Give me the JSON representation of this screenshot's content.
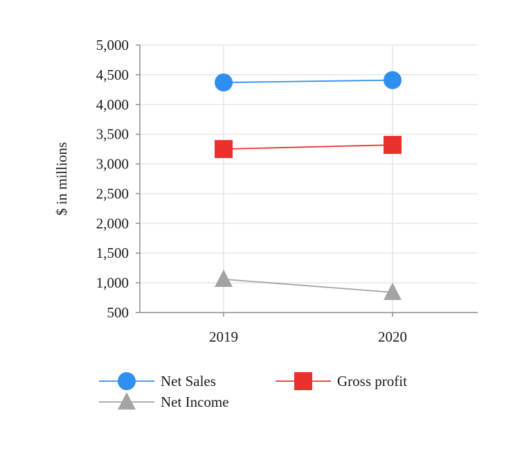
{
  "chart_data": {
    "type": "line",
    "title": "",
    "xlabel": "",
    "ylabel": "$ in millions",
    "categories": [
      "2019",
      "2020"
    ],
    "ylim": [
      500,
      5000
    ],
    "yticks": [
      500,
      1000,
      1500,
      2000,
      2500,
      3000,
      3500,
      4000,
      4500,
      5000
    ],
    "ytick_labels": [
      "500",
      "1,000",
      "1,500",
      "2,000",
      "2,500",
      "3,000",
      "3,500",
      "4,000",
      "4,500",
      "5,000"
    ],
    "grid": true,
    "legend_position": "bottom",
    "series": [
      {
        "name": "Net Sales",
        "values": [
          4370,
          4410
        ],
        "color": "#2f8ff0",
        "marker": "circle"
      },
      {
        "name": "Gross profit",
        "values": [
          3250,
          3320
        ],
        "color": "#e8312c",
        "marker": "square"
      },
      {
        "name": "Net Income",
        "values": [
          1060,
          840
        ],
        "color": "#a3a3a3",
        "marker": "triangle"
      }
    ]
  }
}
